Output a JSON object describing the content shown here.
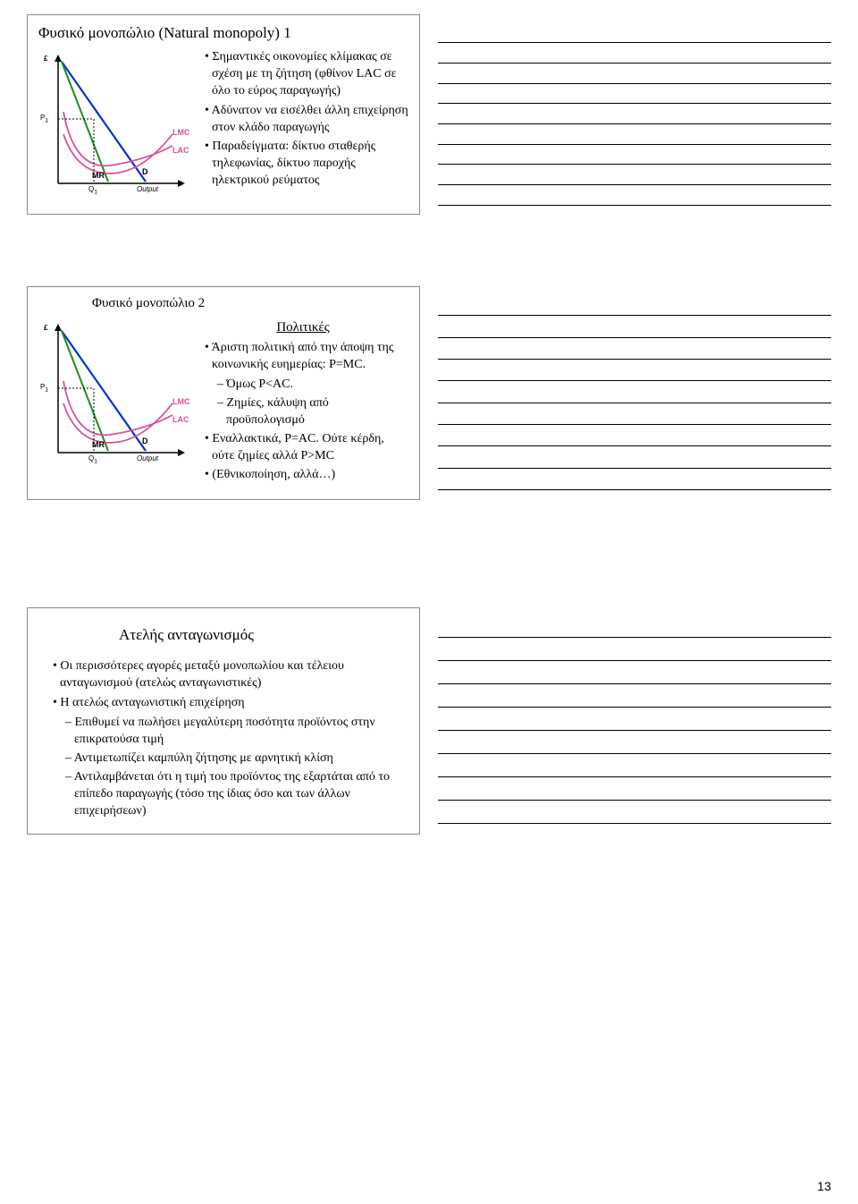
{
  "panel1": {
    "title": "Φυσικό μονοπώλιο (Natural monopoly) 1",
    "bullets": [
      {
        "level": 1,
        "text": "Σημαντικές οικονομίες κλίμακας σε σχέση με τη ζήτηση (φθίνον LAC σε όλο το εύρος παραγωγής)"
      },
      {
        "level": 1,
        "text": "Αδύνατον να εισέλθει άλλη επιχείρηση στον κλάδο παραγωγής"
      },
      {
        "level": 1,
        "text": "Παραδείγματα: δίκτυο σταθερής τηλεφωνίας, δίκτυο παροχής ηλεκτρικού ρεύματος"
      }
    ],
    "graph": {
      "y_label": "£",
      "x_label": "Output",
      "lmc": {
        "label": "LMC",
        "color": "#d94f9e"
      },
      "lac": {
        "label": "LAC",
        "color": "#d94f9e"
      },
      "d": {
        "label": "D",
        "color": "#0033cc"
      },
      "mr": {
        "label": "MR",
        "color": "#1a8f1a"
      },
      "p1": "P",
      "p1sub": "1",
      "q1": "Q",
      "q1sub": "1",
      "axis_color": "#000000",
      "dash_color": "#000000"
    }
  },
  "panel2": {
    "title": "Φυσικό μονοπώλιο 2",
    "subtitle": "Πολιτικές",
    "bullets": [
      {
        "level": 1,
        "text": "Άριστη πολιτική από την άποψη της κοινωνικής ευημερίας: P=MC."
      },
      {
        "level": 2,
        "text": "Όμως P<AC."
      },
      {
        "level": 2,
        "text": "Ζημίες, κάλυψη από προϋπολογισμό"
      },
      {
        "level": 1,
        "text": "Εναλλακτικά, P=AC. Ούτε κέρδη, ούτε ζημίες αλλά P>MC"
      },
      {
        "level": 1,
        "text": "(Εθνικοποίηση, αλλά…)"
      }
    ],
    "graph": {
      "y_label": "£",
      "x_label": "Output",
      "lmc": {
        "label": "LMC",
        "color": "#d94f9e"
      },
      "lac": {
        "label": "LAC",
        "color": "#d94f9e"
      },
      "d": {
        "label": "D",
        "color": "#0033cc"
      },
      "mr": {
        "label": "MR",
        "color": "#1a8f1a"
      },
      "p1": "P",
      "p1sub": "1",
      "q1": "Q",
      "q1sub": "1",
      "axis_color": "#000000",
      "dash_color": "#000000"
    }
  },
  "panel3": {
    "title": "Ατελής ανταγωνισμός",
    "bullets": [
      {
        "level": 1,
        "text": "Οι περισσότερες αγορές μεταξύ μονοπωλίου και τέλειου ανταγωνισμού (ατελώς ανταγωνιστικές)"
      },
      {
        "level": 1,
        "text": "Η ατελώς ανταγωνιστική επιχείρηση"
      },
      {
        "level": 2,
        "text": "Επιθυμεί να πωλήσει μεγαλύτερη ποσότητα προϊόντος στην επικρατούσα τιμή"
      },
      {
        "level": 2,
        "text": "Αντιμετωπίζει καμπύλη ζήτησης με αρνητική κλίση"
      },
      {
        "level": 2,
        "text": "Αντιλαμβάνεται ότι η τιμή του προϊόντος της εξαρτάται από το επίπεδο παραγωγής (τόσο της ίδιας όσο και των άλλων επιχειρήσεων)"
      }
    ]
  },
  "page_number": "13",
  "notes_lines_1": 9,
  "notes_lines_2": 9,
  "notes_lines_3": 9
}
